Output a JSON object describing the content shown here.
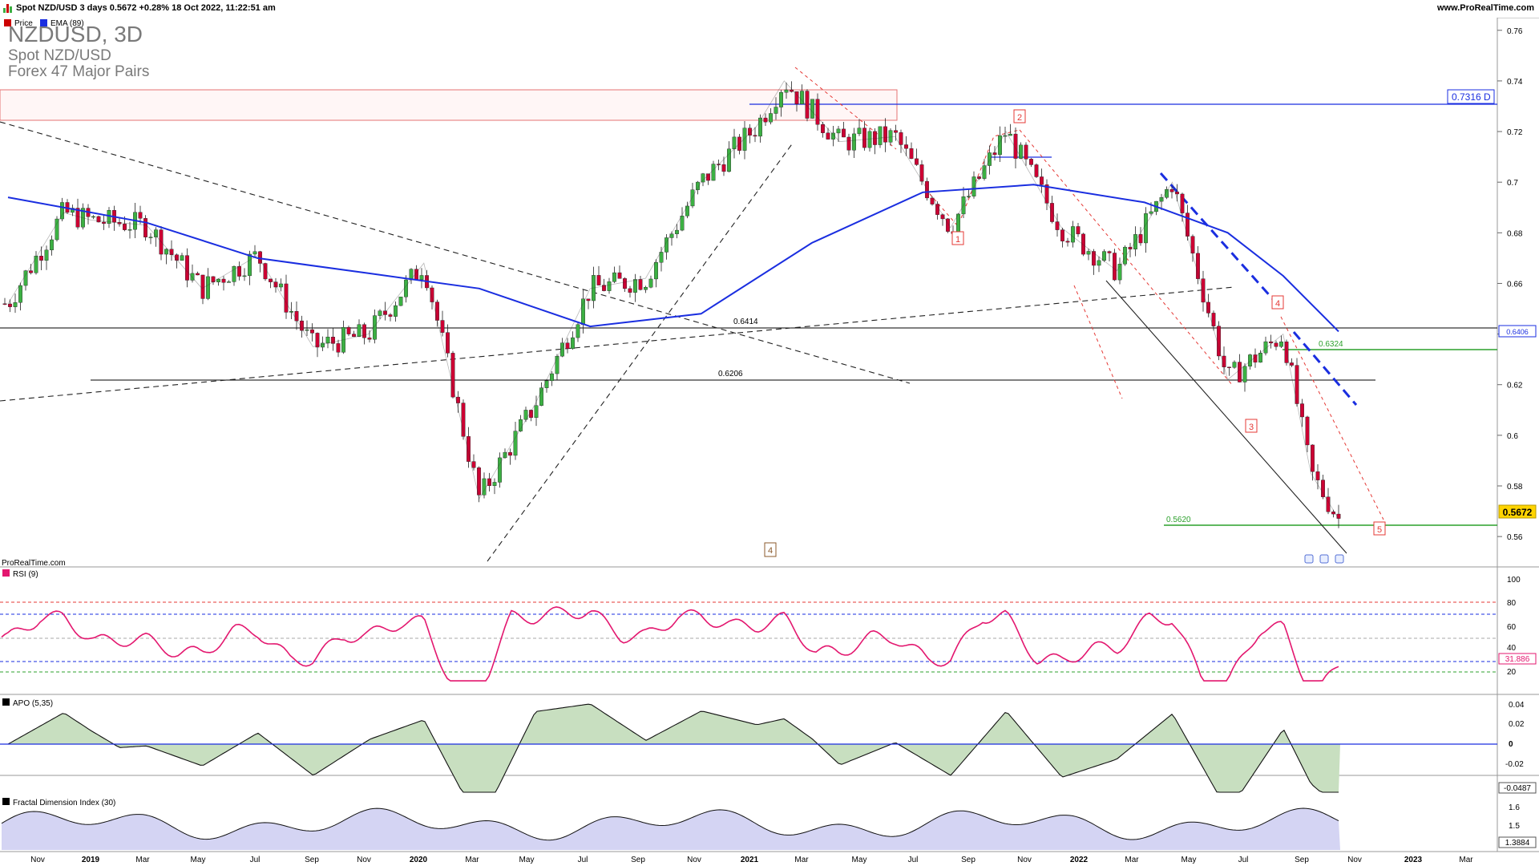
{
  "header": {
    "symbol_line": "Spot NZD/USD 3 days 0.5672 +0.28% 18 Oct 2022, 11:22:51 am",
    "site": "www.ProRealTime.com"
  },
  "legend": {
    "price_label": "Price",
    "ema_label": "EMA (89)",
    "price_color": "#cc0000",
    "ema_color": "#1a2ee0"
  },
  "title": {
    "big": "NZDUSD, 3D",
    "line2": "Spot NZD/USD",
    "line3": "Forex 47 Major Pairs"
  },
  "watermark": "ProRealTime.com",
  "annotations": {
    "level_0_6414": "0.6414",
    "level_0_6206": "0.6206",
    "level_0_6324": "0.6324",
    "level_0_5620": "0.5620",
    "tag_0_7316": "0.7316 D",
    "current_price": "0.5672",
    "ema_value": "0.6406",
    "wave_1": "1",
    "wave_2": "2",
    "wave_3": "3",
    "wave_4": "4",
    "wave_5": "5",
    "wave_4_brown": "4"
  },
  "rsi": {
    "label": "RSI (9)",
    "value_tag": "31.886",
    "ticks": [
      "100",
      "80",
      "60",
      "40",
      "20"
    ]
  },
  "apo": {
    "label": "APO (5,35)",
    "value_tag": "-0.0487",
    "ticks": [
      "0.04",
      "0.02",
      "0",
      "-0.02",
      "-0.04"
    ]
  },
  "fdi": {
    "label": "Fractal Dimension Index (30)",
    "value_tag": "1.3884",
    "ticks": [
      "1.6",
      "1.5"
    ]
  },
  "x_axis": {
    "labels": [
      "Nov",
      "2019",
      "Mar",
      "May",
      "Jul",
      "Sep",
      "Nov",
      "2020",
      "Mar",
      "May",
      "Jul",
      "Sep",
      "Nov",
      "2021",
      "Mar",
      "May",
      "Jul",
      "Sep",
      "Nov",
      "2022",
      "Mar",
      "May",
      "Jul",
      "Sep",
      "Nov",
      "2023",
      "Mar"
    ]
  },
  "chart_data": {
    "type": "line",
    "price_axis": {
      "ticks": [
        "0.76",
        "0.74",
        "0.72",
        "0.7",
        "0.68",
        "0.66",
        "0.64",
        "0.62",
        "0.6",
        "0.58",
        "0.56"
      ],
      "ylim": [
        0.548,
        0.765
      ]
    },
    "series": [
      {
        "name": "Price",
        "x": [
          "2018-10",
          "2018-12",
          "2019-01",
          "2019-03",
          "2019-05",
          "2019-07",
          "2019-09",
          "2019-11",
          "2020-01",
          "2020-03",
          "2020-05",
          "2020-07",
          "2020-09",
          "2020-11",
          "2021-01",
          "2021-02",
          "2021-04",
          "2021-06",
          "2021-08",
          "2021-10",
          "2021-12",
          "2022-02",
          "2022-04",
          "2022-06",
          "2022-08",
          "2022-09",
          "2022-10"
        ],
        "values": [
          0.652,
          0.688,
          0.685,
          0.683,
          0.658,
          0.671,
          0.635,
          0.64,
          0.668,
          0.575,
          0.612,
          0.658,
          0.662,
          0.7,
          0.722,
          0.74,
          0.716,
          0.718,
          0.682,
          0.72,
          0.682,
          0.665,
          0.7,
          0.622,
          0.64,
          0.585,
          0.567
        ]
      },
      {
        "name": "EMA (89)",
        "x": [
          "2018-10",
          "2019-03",
          "2019-07",
          "2019-11",
          "2020-03",
          "2020-07",
          "2020-11",
          "2021-03",
          "2021-07",
          "2021-11",
          "2022-03",
          "2022-06",
          "2022-08",
          "2022-10"
        ],
        "values": [
          0.694,
          0.684,
          0.67,
          0.664,
          0.658,
          0.643,
          0.648,
          0.676,
          0.696,
          0.699,
          0.692,
          0.68,
          0.663,
          0.641
        ]
      }
    ]
  }
}
